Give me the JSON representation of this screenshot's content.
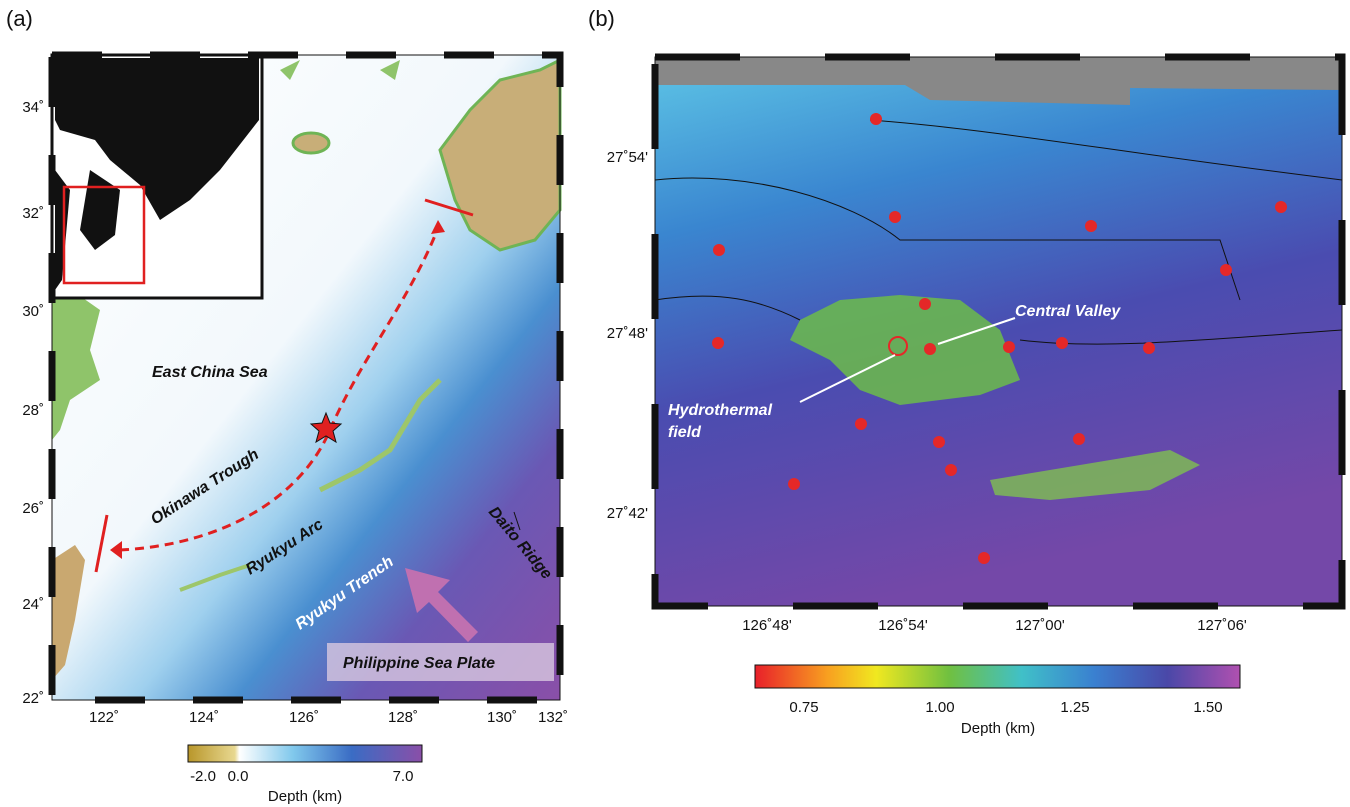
{
  "panel_a": {
    "label": "(a)",
    "yticks": [
      "34˚",
      "32˚",
      "30˚",
      "28˚",
      "26˚",
      "24˚",
      "22˚"
    ],
    "xticks": [
      "122˚",
      "124˚",
      "126˚",
      "128˚",
      "130˚",
      "132˚"
    ],
    "annotations": {
      "east_china_sea": "East China Sea",
      "okinawa_trough": "Okinawa Trough",
      "ryukyu_arc": "Ryukyu Arc",
      "ryukyu_trench": "Ryukyu Trench",
      "daito_ridge": "Daito Ridge",
      "philippine_sea_plate": "Philippine Sea Plate"
    },
    "colorbar": {
      "ticks": [
        "-2.0",
        "0.0",
        "7.0"
      ],
      "label": "Depth (km)"
    }
  },
  "panel_b": {
    "label": "(b)",
    "yticks": [
      "27˚54'",
      "27˚48'",
      "27˚42'"
    ],
    "xticks": [
      "126˚48'",
      "126˚54'",
      "127˚00'",
      "127˚06'"
    ],
    "annotations": {
      "central_valley": "Central Valley",
      "hydrothermal_field": [
        "Hydrothermal",
        "field"
      ]
    },
    "colorbar": {
      "ticks": [
        "0.75",
        "1.00",
        "1.25",
        "1.50"
      ],
      "label": "Depth (km)"
    }
  }
}
